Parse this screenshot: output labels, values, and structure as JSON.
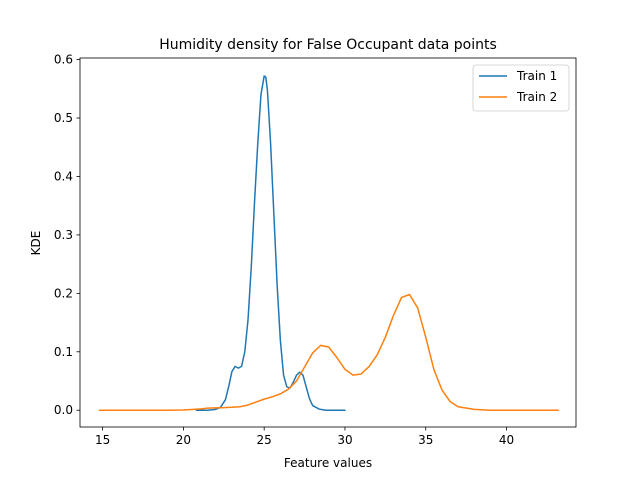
{
  "chart_data": {
    "type": "line",
    "title": "Humidity density for False Occupant data points",
    "xlabel": "Feature values",
    "ylabel": "KDE",
    "xlim": [
      13.6,
      44.3
    ],
    "ylim": [
      -0.0287,
      0.6027
    ],
    "xticks": [
      15,
      20,
      25,
      30,
      35,
      40
    ],
    "yticks": [
      0.0,
      0.1,
      0.2,
      0.3,
      0.4,
      0.5,
      0.6
    ],
    "xtick_labels": [
      "15",
      "20",
      "25",
      "30",
      "35",
      "40"
    ],
    "ytick_labels": [
      "0.0",
      "0.1",
      "0.2",
      "0.3",
      "0.4",
      "0.5",
      "0.6"
    ],
    "grid": false,
    "legend_position": "top-right",
    "series": [
      {
        "name": "Train 1",
        "color": "#1f77b4",
        "x": [
          20.8,
          21.5,
          22.0,
          22.3,
          22.6,
          22.8,
          23.0,
          23.2,
          23.4,
          23.6,
          23.8,
          24.0,
          24.2,
          24.4,
          24.6,
          24.8,
          25.0,
          25.1,
          25.2,
          25.4,
          25.6,
          25.8,
          26.0,
          26.2,
          26.4,
          26.6,
          26.8,
          27.0,
          27.2,
          27.4,
          27.6,
          27.8,
          28.0,
          28.4,
          28.8,
          29.2,
          30.0
        ],
        "y": [
          0.0,
          0.0,
          0.0015,
          0.005,
          0.018,
          0.04,
          0.066,
          0.075,
          0.072,
          0.075,
          0.1,
          0.155,
          0.245,
          0.355,
          0.455,
          0.54,
          0.572,
          0.57,
          0.548,
          0.455,
          0.335,
          0.215,
          0.12,
          0.06,
          0.04,
          0.038,
          0.048,
          0.06,
          0.065,
          0.06,
          0.04,
          0.02,
          0.008,
          0.002,
          0.0,
          0.0,
          0.0
        ]
      },
      {
        "name": "Train 2",
        "color": "#ff7f0e",
        "x": [
          14.8,
          17.0,
          19.0,
          20.0,
          21.0,
          21.5,
          22.0,
          22.5,
          23.0,
          23.5,
          24.0,
          24.5,
          25.0,
          25.5,
          26.0,
          26.5,
          27.0,
          27.5,
          28.0,
          28.5,
          29.0,
          29.5,
          30.0,
          30.5,
          31.0,
          31.5,
          32.0,
          32.5,
          33.0,
          33.5,
          34.0,
          34.5,
          35.0,
          35.5,
          36.0,
          36.5,
          37.0,
          38.0,
          39.0,
          41.0,
          43.2
        ],
        "y": [
          0.0,
          0.0,
          0.0,
          0.0005,
          0.002,
          0.0035,
          0.004,
          0.0045,
          0.005,
          0.006,
          0.009,
          0.014,
          0.019,
          0.023,
          0.028,
          0.036,
          0.05,
          0.074,
          0.098,
          0.111,
          0.108,
          0.09,
          0.07,
          0.06,
          0.062,
          0.075,
          0.095,
          0.125,
          0.162,
          0.193,
          0.198,
          0.175,
          0.125,
          0.07,
          0.035,
          0.015,
          0.006,
          0.0015,
          0.0,
          0.0,
          0.0
        ]
      }
    ]
  }
}
